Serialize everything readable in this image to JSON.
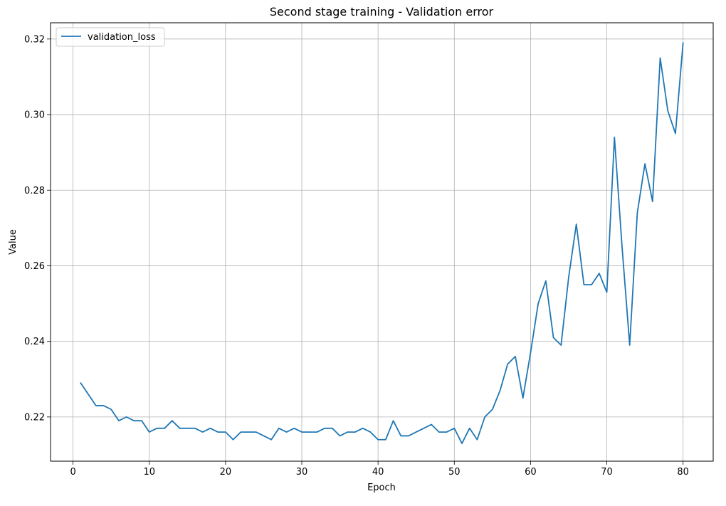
{
  "chart_data": {
    "type": "line",
    "title": "Second stage training - Validation error",
    "xlabel": "Epoch",
    "ylabel": "Value",
    "xlim": [
      -2.95,
      83.95
    ],
    "ylim": [
      0.2083,
      0.3243
    ],
    "xticks": [
      0,
      10,
      20,
      30,
      40,
      50,
      60,
      70,
      80
    ],
    "xtick_labels": [
      "0",
      "10",
      "20",
      "30",
      "40",
      "50",
      "60",
      "70",
      "80"
    ],
    "yticks": [
      0.22,
      0.24,
      0.26,
      0.28,
      0.3,
      0.32
    ],
    "ytick_labels": [
      "0.22",
      "0.24",
      "0.26",
      "0.28",
      "0.30",
      "0.32"
    ],
    "grid": true,
    "legend_position": "upper-left",
    "series": [
      {
        "name": "validation_loss",
        "color": "#1f77b4",
        "x": [
          1,
          2,
          3,
          4,
          5,
          6,
          7,
          8,
          9,
          10,
          11,
          12,
          13,
          14,
          15,
          16,
          17,
          18,
          19,
          20,
          21,
          22,
          23,
          24,
          25,
          26,
          27,
          28,
          29,
          30,
          31,
          32,
          33,
          34,
          35,
          36,
          37,
          38,
          39,
          40,
          41,
          42,
          43,
          44,
          45,
          46,
          47,
          48,
          49,
          50,
          51,
          52,
          53,
          54,
          55,
          56,
          57,
          58,
          59,
          60,
          61,
          62,
          63,
          64,
          65,
          66,
          67,
          68,
          69,
          70,
          71,
          72,
          73,
          74,
          75,
          76,
          77,
          78,
          79,
          80
        ],
        "y": [
          0.229,
          0.226,
          0.223,
          0.223,
          0.222,
          0.219,
          0.22,
          0.219,
          0.219,
          0.216,
          0.217,
          0.217,
          0.219,
          0.217,
          0.217,
          0.217,
          0.216,
          0.217,
          0.216,
          0.216,
          0.214,
          0.216,
          0.216,
          0.216,
          0.215,
          0.214,
          0.217,
          0.216,
          0.217,
          0.216,
          0.216,
          0.216,
          0.217,
          0.217,
          0.215,
          0.216,
          0.216,
          0.217,
          0.216,
          0.214,
          0.214,
          0.219,
          0.215,
          0.215,
          0.216,
          0.217,
          0.218,
          0.216,
          0.216,
          0.217,
          0.213,
          0.217,
          0.214,
          0.22,
          0.222,
          0.227,
          0.234,
          0.236,
          0.225,
          0.237,
          0.25,
          0.256,
          0.241,
          0.239,
          0.257,
          0.271,
          0.255,
          0.255,
          0.258,
          0.253,
          0.294,
          0.265,
          0.239,
          0.274,
          0.287,
          0.277,
          0.315,
          0.301,
          0.295,
          0.319
        ]
      }
    ]
  }
}
